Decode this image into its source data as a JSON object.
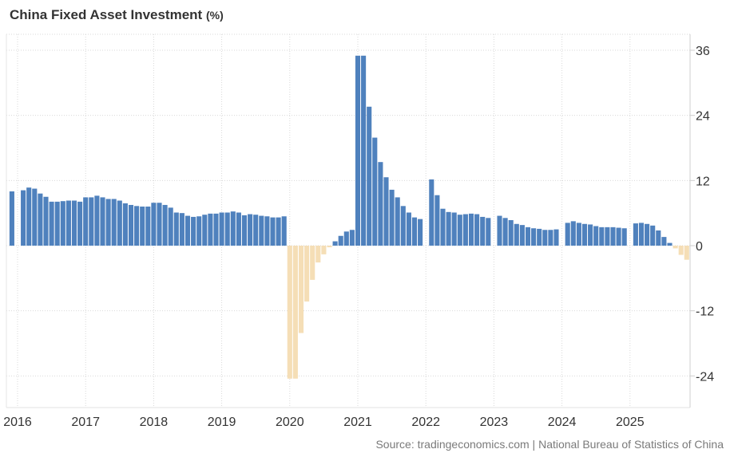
{
  "chart_data": {
    "type": "bar",
    "title": "China Fixed Asset Investment",
    "unit": "(%)",
    "xlabel": "",
    "ylabel": "",
    "ylim": [
      -30,
      38
    ],
    "y_ticks": [
      36,
      24,
      12,
      0,
      -12,
      -24
    ],
    "x_ticks": [
      "2016",
      "2017",
      "2018",
      "2019",
      "2020",
      "2021",
      "2022",
      "2023",
      "2024",
      "2025"
    ],
    "grid": true,
    "legend": "none",
    "colors": {
      "positive": "#4f81bd",
      "negative": "#f5deb6"
    },
    "start_month": "2015-12",
    "values": [
      10.0,
      null,
      10.2,
      10.7,
      10.5,
      9.6,
      9.0,
      8.1,
      8.1,
      8.2,
      8.3,
      8.3,
      8.1,
      8.9,
      8.9,
      9.2,
      8.9,
      8.6,
      8.6,
      8.3,
      7.8,
      7.5,
      7.3,
      7.2,
      7.2,
      7.9,
      7.9,
      7.5,
      7.0,
      6.1,
      6.0,
      5.5,
      5.3,
      5.4,
      5.7,
      5.9,
      5.9,
      6.1,
      6.1,
      6.3,
      6.1,
      5.6,
      5.8,
      5.7,
      5.5,
      5.4,
      5.2,
      5.2,
      5.4,
      -24.5,
      -24.5,
      -16.1,
      -10.3,
      -6.3,
      -3.1,
      -1.6,
      -0.3,
      0.8,
      1.8,
      2.6,
      2.9,
      35.0,
      35.0,
      25.6,
      19.9,
      15.4,
      12.6,
      10.3,
      8.9,
      7.3,
      6.1,
      5.2,
      4.9,
      null,
      12.2,
      9.3,
      6.8,
      6.2,
      6.1,
      5.7,
      5.8,
      5.9,
      5.8,
      5.3,
      5.1,
      null,
      5.5,
      5.1,
      4.7,
      4.0,
      3.8,
      3.4,
      3.2,
      3.1,
      2.9,
      2.9,
      3.0,
      null,
      4.2,
      4.5,
      4.2,
      4.0,
      3.9,
      3.6,
      3.4,
      3.4,
      3.4,
      3.3,
      3.2,
      null,
      4.1,
      4.2,
      4.0,
      3.7,
      2.8,
      1.6,
      0.5,
      -0.5,
      -1.7,
      -2.6
    ],
    "source": "Source: tradingeconomics.com | National Bureau of Statistics of China"
  }
}
